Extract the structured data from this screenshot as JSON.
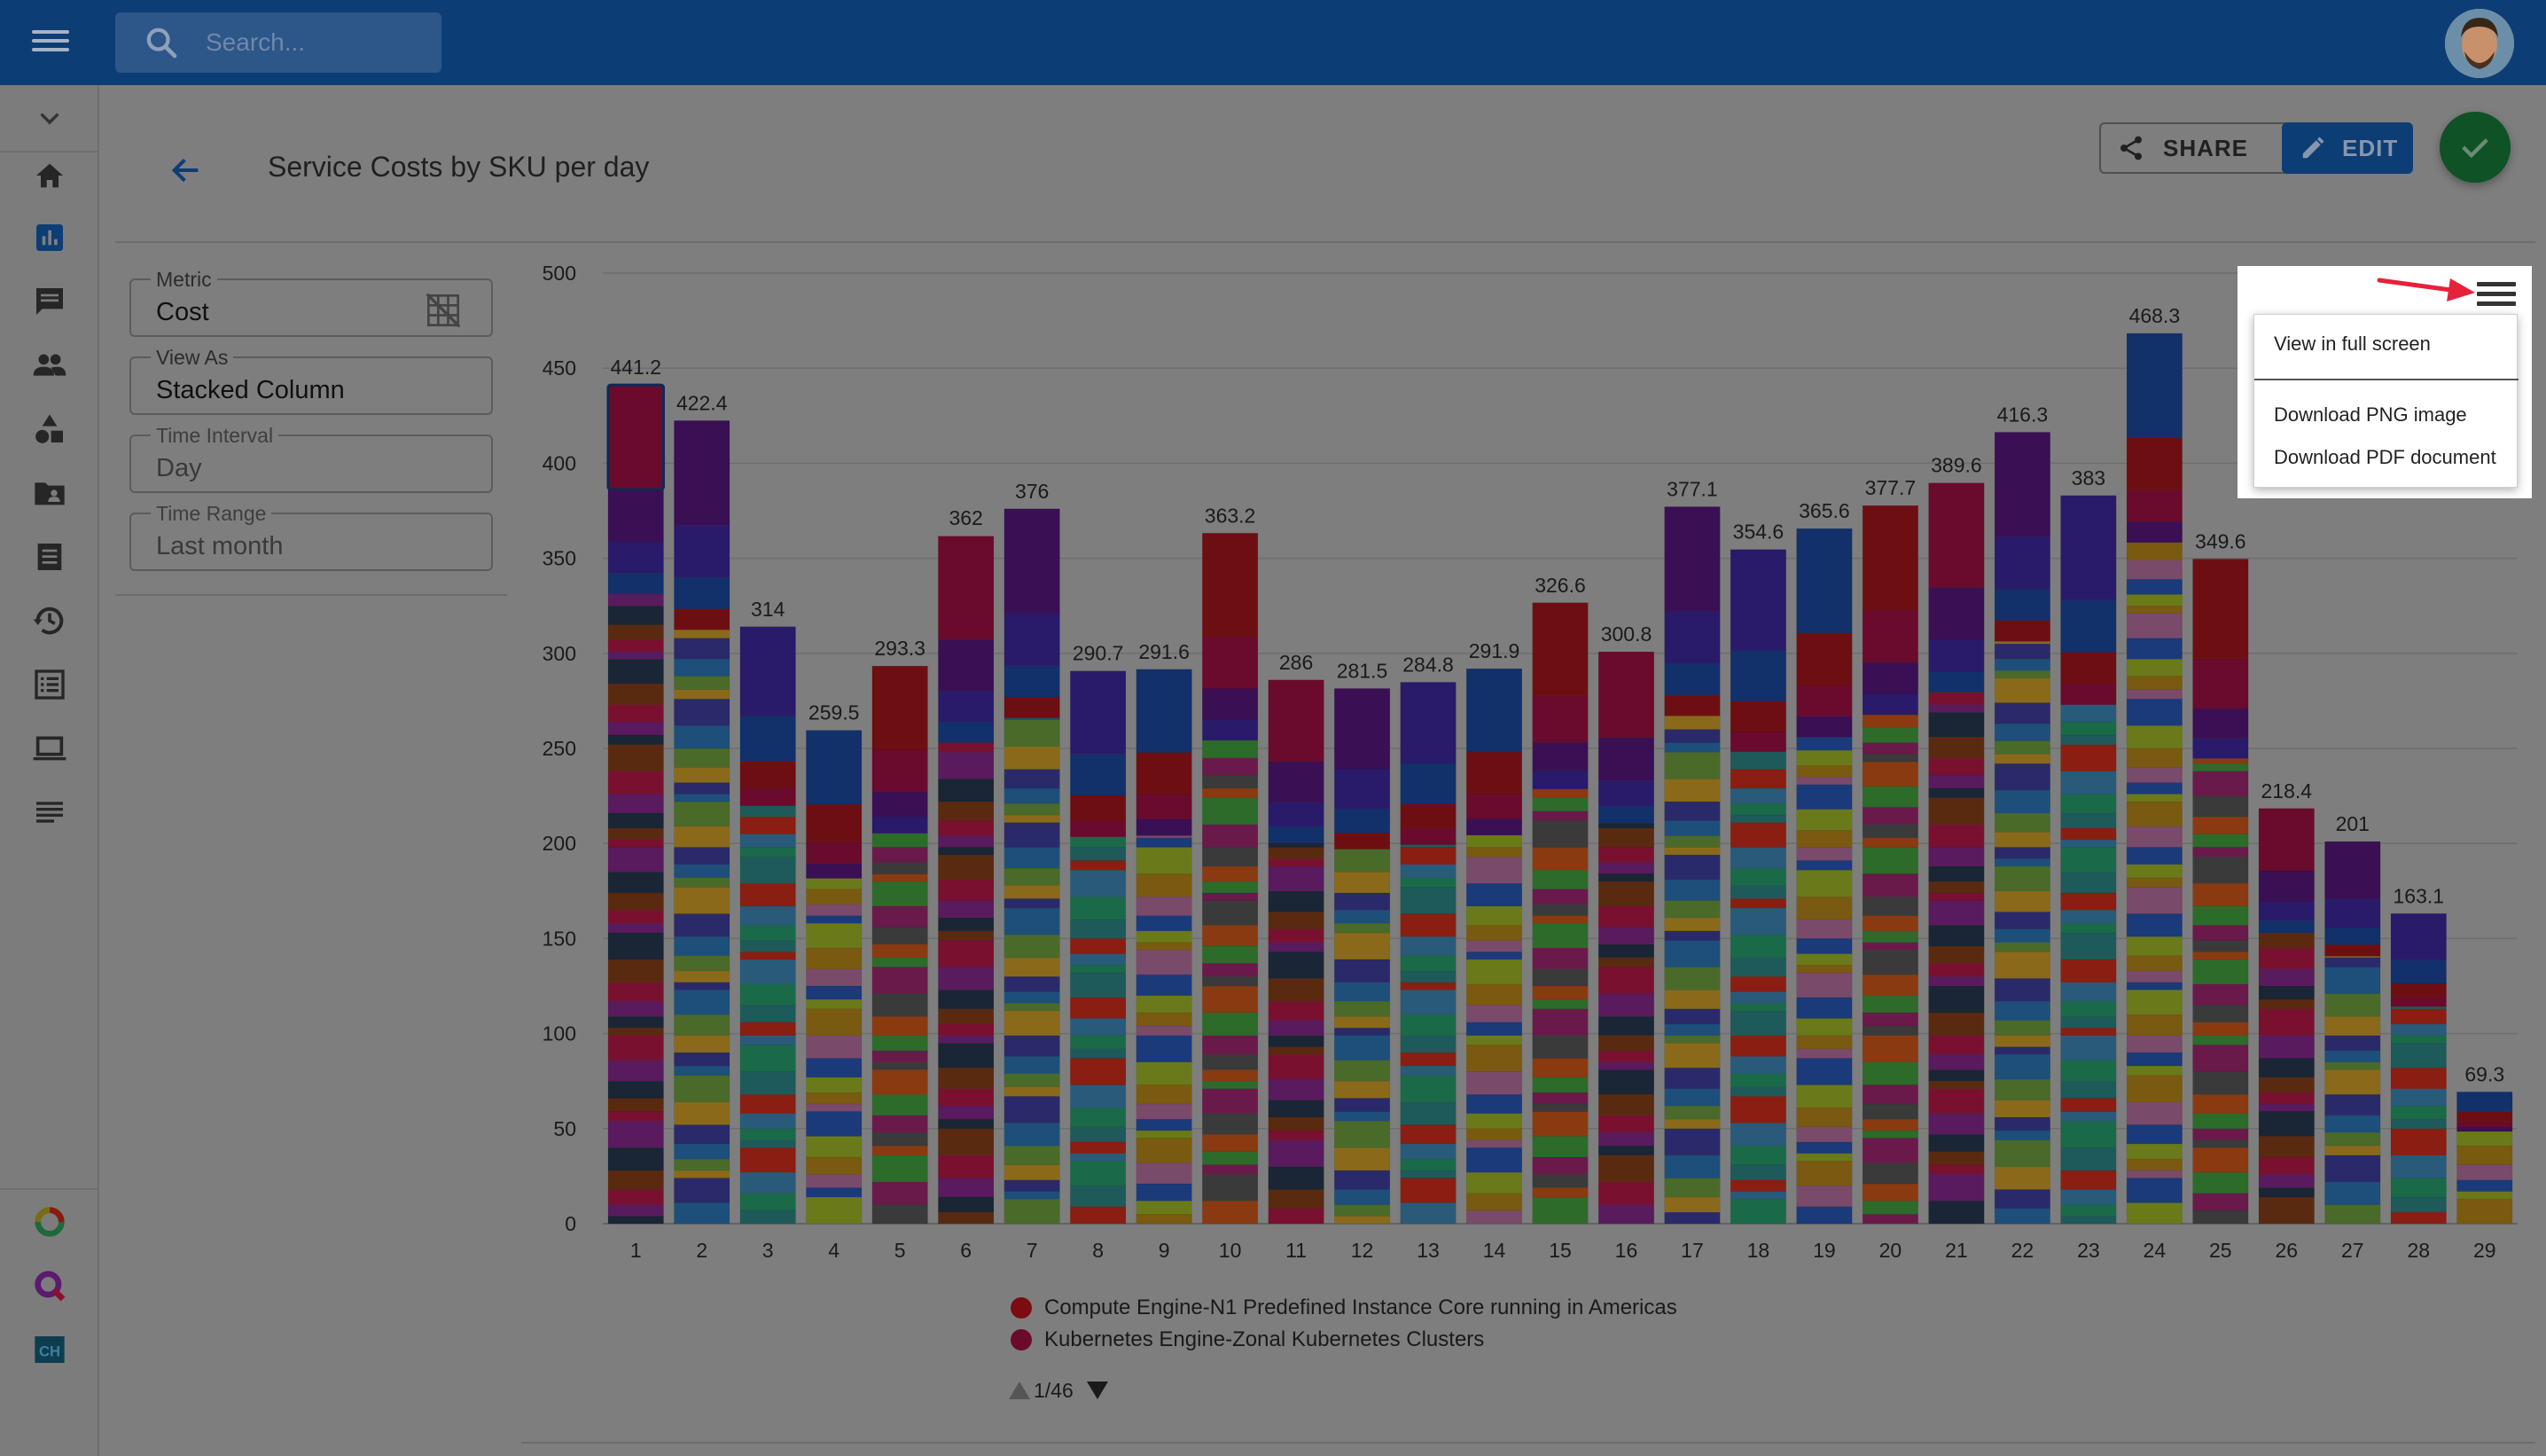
{
  "topbar": {
    "search_placeholder": "Search..."
  },
  "page": {
    "title": "Service Costs by SKU per day"
  },
  "actions": {
    "share_label": "SHARE",
    "edit_label": "EDIT"
  },
  "filters": {
    "metric": {
      "label": "Metric",
      "value": "Cost"
    },
    "view_as": {
      "label": "View As",
      "value": "Stacked Column"
    },
    "time_interval": {
      "label": "Time Interval",
      "value": "Day"
    },
    "time_range": {
      "label": "Time Range",
      "value": "Last month"
    }
  },
  "export_menu": {
    "items": [
      "View in full screen",
      "Download PNG image",
      "Download PDF document"
    ]
  },
  "colors": {
    "highlight_arrow": "#e8213a",
    "primary": "#0d3d75",
    "accent": "#0e5225"
  },
  "sidebar_icons": [
    "chevron-down-icon",
    "home-icon",
    "bar-chart-icon",
    "comment-icon",
    "people-icon",
    "shapes-icon",
    "contact-folder-icon",
    "receipt-icon",
    "history-icon",
    "list-icon",
    "laptop-icon",
    "notes-icon",
    "circle-logo-icon",
    "search-logo-icon",
    "ch-logo-icon"
  ],
  "chart_data": {
    "type": "bar",
    "stacked": true,
    "categories": [
      "1",
      "2",
      "3",
      "4",
      "5",
      "6",
      "7",
      "8",
      "9",
      "10",
      "11",
      "12",
      "13",
      "14",
      "15",
      "16",
      "17",
      "18",
      "19",
      "20",
      "21",
      "22",
      "23",
      "24",
      "25",
      "26",
      "27",
      "28",
      "29"
    ],
    "values": [
      441.2,
      422.4,
      314,
      259.5,
      293.3,
      362,
      376,
      290.7,
      291.6,
      363.2,
      286,
      281.5,
      284.8,
      291.9,
      326.6,
      300.8,
      377.1,
      354.6,
      365.6,
      377.7,
      389.6,
      416.3,
      383,
      468.3,
      349.6,
      218.4,
      201,
      163.1,
      69.3
    ],
    "value_labels": [
      "441.2",
      "422.4",
      "314",
      "259.5",
      "293.3",
      "362",
      "376",
      "290.7",
      "291.6",
      "363.2",
      "286",
      "281.5",
      "284.8",
      "291.9",
      "326.6",
      "300.8",
      "377.1",
      "354.6",
      "365.6",
      "377.7",
      "389.6",
      "416.3",
      "383",
      "468.3",
      "349.6",
      "218.4",
      "201",
      "163.1",
      "69.3"
    ],
    "y_ticks": [
      "0",
      "50",
      "100",
      "150",
      "200",
      "250",
      "300",
      "350",
      "400",
      "450",
      "500"
    ],
    "ylim": [
      0,
      500
    ],
    "grid": true,
    "legend_position": "bottom",
    "legend": [
      {
        "name": "Compute Engine-N1 Predefined Instance Core running in Americas",
        "color": "#7a0c12"
      },
      {
        "name": "Kubernetes Engine-Zonal Kubernetes Clusters",
        "color": "#6a0a2c"
      }
    ],
    "legend_pager": "1/46",
    "selected_category": "1"
  }
}
